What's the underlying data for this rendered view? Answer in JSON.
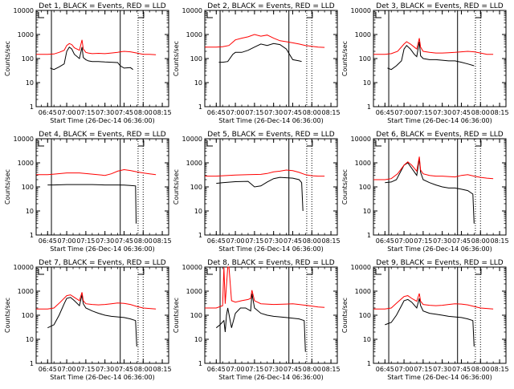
{
  "colors": {
    "events": "#000000",
    "lld": "#ff0000",
    "frame": "#000000",
    "background": "#ffffff"
  },
  "ylabel": "Counts/sec",
  "xlabel": "Start Time (26-Dec-14 06:36:00)",
  "ytick_labels": [
    "1",
    "10",
    "100",
    "1000",
    "10000"
  ],
  "xtick_labels": [
    "06:45",
    "07:00",
    "07:15",
    "07:30",
    "07:45",
    "08:00",
    "08:15"
  ],
  "chart_data": [
    {
      "type": "line",
      "title": "Det 1, BLACK = Events, RED = LLD",
      "yscale": "log",
      "ylim": [
        1,
        10000
      ],
      "xlim": [
        "06:36",
        "08:20"
      ],
      "solid_markers": [
        "06:48",
        "07:42"
      ],
      "dotted_markers": [
        "07:56",
        "08:00"
      ],
      "series": [
        {
          "name": "BLACK = Events",
          "x": [
            "06:47",
            "06:50",
            "06:54",
            "06:58",
            "07:00",
            "07:02",
            "07:04",
            "07:06",
            "07:10",
            "07:12",
            "07:13",
            "07:15",
            "07:17",
            "07:20",
            "07:25",
            "07:30",
            "07:35",
            "07:40",
            "07:42",
            "07:45",
            "07:50",
            "07:52"
          ],
          "y": [
            40,
            35,
            45,
            60,
            200,
            300,
            250,
            150,
            100,
            300,
            110,
            90,
            80,
            75,
            75,
            72,
            70,
            68,
            50,
            40,
            42,
            35
          ]
        },
        {
          "name": "RED = LLD",
          "x": [
            "06:36",
            "06:45",
            "06:50",
            "06:54",
            "06:58",
            "07:00",
            "07:02",
            "07:04",
            "07:06",
            "07:10",
            "07:12",
            "07:13",
            "07:15",
            "07:17",
            "07:20",
            "07:25",
            "07:30",
            "07:35",
            "07:40",
            "07:42",
            "07:45",
            "07:50",
            "07:55",
            "08:00",
            "08:05",
            "08:10"
          ],
          "y": [
            150,
            150,
            155,
            180,
            220,
            350,
            420,
            380,
            280,
            220,
            600,
            250,
            180,
            170,
            160,
            165,
            160,
            170,
            180,
            190,
            200,
            190,
            170,
            150,
            150,
            145
          ]
        }
      ]
    },
    {
      "type": "line",
      "title": "Det 2, BLACK = Events, RED = LLD",
      "yscale": "log",
      "ylim": [
        1,
        10000
      ],
      "xlim": [
        "06:36",
        "08:20"
      ],
      "solid_markers": [
        "06:48",
        "07:42"
      ],
      "dotted_markers": [
        "07:56",
        "08:00"
      ],
      "series": [
        {
          "name": "BLACK = Events",
          "x": [
            "06:47",
            "06:50",
            "06:54",
            "06:58",
            "07:00",
            "07:05",
            "07:10",
            "07:15",
            "07:20",
            "07:25",
            "07:30",
            "07:35",
            "07:40",
            "07:45",
            "07:50",
            "07:52"
          ],
          "y": [
            70,
            70,
            75,
            150,
            180,
            180,
            220,
            300,
            400,
            350,
            420,
            380,
            250,
            90,
            80,
            75
          ]
        },
        {
          "name": "RED = LLD",
          "x": [
            "06:36",
            "06:45",
            "06:50",
            "06:55",
            "07:00",
            "07:05",
            "07:10",
            "07:15",
            "07:20",
            "07:25",
            "07:30",
            "07:35",
            "07:40",
            "07:45",
            "07:50",
            "07:55",
            "08:00",
            "08:05",
            "08:10"
          ],
          "y": [
            300,
            300,
            310,
            350,
            600,
            700,
            800,
            1000,
            850,
            950,
            700,
            550,
            500,
            450,
            400,
            350,
            320,
            300,
            290
          ]
        }
      ]
    },
    {
      "type": "line",
      "title": "Det 3, BLACK = Events, RED = LLD",
      "yscale": "log",
      "ylim": [
        1,
        10000
      ],
      "xlim": [
        "06:36",
        "08:20"
      ],
      "solid_markers": [
        "06:48",
        "07:42"
      ],
      "dotted_markers": [
        "07:56",
        "08:00"
      ],
      "series": [
        {
          "name": "BLACK = Events",
          "x": [
            "06:47",
            "06:50",
            "06:54",
            "06:58",
            "07:00",
            "07:02",
            "07:05",
            "07:08",
            "07:10",
            "07:12",
            "07:13",
            "07:15",
            "07:20",
            "07:25",
            "07:30",
            "07:35",
            "07:40",
            "07:45",
            "07:50",
            "07:55"
          ],
          "y": [
            40,
            35,
            50,
            80,
            250,
            350,
            250,
            150,
            120,
            500,
            130,
            100,
            90,
            90,
            85,
            80,
            80,
            70,
            60,
            50
          ]
        },
        {
          "name": "RED = LLD",
          "x": [
            "06:36",
            "06:45",
            "06:50",
            "06:55",
            "07:00",
            "07:02",
            "07:05",
            "07:08",
            "07:10",
            "07:12",
            "07:13",
            "07:15",
            "07:20",
            "07:25",
            "07:30",
            "07:35",
            "07:40",
            "07:45",
            "07:50",
            "07:55",
            "08:00",
            "08:05",
            "08:10"
          ],
          "y": [
            150,
            150,
            160,
            200,
            400,
            500,
            400,
            300,
            250,
            700,
            300,
            200,
            180,
            170,
            170,
            175,
            180,
            190,
            200,
            190,
            170,
            150,
            150
          ]
        }
      ]
    },
    {
      "type": "line",
      "title": "Det 4, BLACK = Events, RED = LLD",
      "yscale": "log",
      "ylim": [
        1,
        10000
      ],
      "xlim": [
        "06:36",
        "08:20"
      ],
      "solid_markers": [
        "06:48",
        "07:42"
      ],
      "dotted_markers": [
        "07:56",
        "08:00"
      ],
      "series": [
        {
          "name": "BLACK = Events",
          "x": [
            "06:45",
            "06:50",
            "07:00",
            "07:10",
            "07:20",
            "07:30",
            "07:40",
            "07:45",
            "07:50",
            "07:54",
            "07:54.5"
          ],
          "y": [
            120,
            120,
            125,
            125,
            125,
            120,
            120,
            118,
            115,
            110,
            3
          ]
        },
        {
          "name": "RED = LLD",
          "x": [
            "06:36",
            "06:45",
            "06:50",
            "07:00",
            "07:10",
            "07:20",
            "07:30",
            "07:35",
            "07:40",
            "07:45",
            "07:50",
            "07:55",
            "08:00",
            "08:05",
            "08:10"
          ],
          "y": [
            320,
            320,
            340,
            380,
            380,
            340,
            300,
            350,
            450,
            520,
            480,
            420,
            380,
            350,
            320
          ]
        }
      ]
    },
    {
      "type": "line",
      "title": "Det 5, BLACK = Events, RED = LLD",
      "yscale": "log",
      "ylim": [
        1,
        10000
      ],
      "xlim": [
        "06:36",
        "08:20"
      ],
      "solid_markers": [
        "06:48",
        "07:42"
      ],
      "dotted_markers": [
        "07:56",
        "08:00"
      ],
      "series": [
        {
          "name": "BLACK = Events",
          "x": [
            "06:45",
            "06:50",
            "07:00",
            "07:10",
            "07:15",
            "07:20",
            "07:25",
            "07:30",
            "07:35",
            "07:40",
            "07:45",
            "07:50",
            "07:52",
            "07:53"
          ],
          "y": [
            140,
            150,
            165,
            170,
            100,
            110,
            160,
            220,
            250,
            240,
            230,
            200,
            150,
            10
          ]
        },
        {
          "name": "RED = LLD",
          "x": [
            "06:36",
            "06:45",
            "06:50",
            "07:00",
            "07:10",
            "07:20",
            "07:25",
            "07:30",
            "07:35",
            "07:40",
            "07:45",
            "07:50",
            "07:55",
            "08:00",
            "08:05",
            "08:10"
          ],
          "y": [
            280,
            280,
            290,
            310,
            320,
            330,
            360,
            420,
            450,
            500,
            470,
            400,
            320,
            290,
            280,
            280
          ]
        }
      ]
    },
    {
      "type": "line",
      "title": "Det 6, BLACK = Events, RED = LLD",
      "yscale": "log",
      "ylim": [
        1,
        10000
      ],
      "xlim": [
        "06:36",
        "08:20"
      ],
      "solid_markers": [
        "06:48",
        "07:42"
      ],
      "dotted_markers": [
        "07:56",
        "08:00"
      ],
      "series": [
        {
          "name": "BLACK = Events",
          "x": [
            "06:45",
            "06:50",
            "06:54",
            "06:58",
            "07:00",
            "07:03",
            "07:06",
            "07:10",
            "07:12",
            "07:13",
            "07:15",
            "07:20",
            "07:25",
            "07:30",
            "07:35",
            "07:40",
            "07:45",
            "07:50",
            "07:54",
            "07:55"
          ],
          "y": [
            150,
            160,
            200,
            500,
            800,
            1000,
            600,
            300,
            1500,
            400,
            200,
            150,
            120,
            100,
            90,
            90,
            80,
            70,
            50,
            3
          ]
        },
        {
          "name": "RED = LLD",
          "x": [
            "06:36",
            "06:45",
            "06:50",
            "06:55",
            "07:00",
            "07:03",
            "07:06",
            "07:10",
            "07:12",
            "07:13",
            "07:15",
            "07:20",
            "07:25",
            "07:30",
            "07:35",
            "07:40",
            "07:45",
            "07:50",
            "07:55",
            "08:00",
            "08:05",
            "08:10"
          ],
          "y": [
            200,
            200,
            220,
            350,
            800,
            1100,
            800,
            450,
            1800,
            500,
            350,
            300,
            280,
            280,
            270,
            260,
            300,
            320,
            280,
            250,
            230,
            220
          ]
        }
      ]
    },
    {
      "type": "line",
      "title": "Det 7, BLACK = Events, RED = LLD",
      "yscale": "log",
      "ylim": [
        1,
        10000
      ],
      "xlim": [
        "06:36",
        "08:20"
      ],
      "solid_markers": [
        "06:48",
        "07:42"
      ],
      "dotted_markers": [
        "07:56",
        "08:00"
      ],
      "series": [
        {
          "name": "BLACK = Events",
          "x": [
            "06:45",
            "06:50",
            "06:54",
            "06:58",
            "07:00",
            "07:03",
            "07:06",
            "07:10",
            "07:12",
            "07:13",
            "07:15",
            "07:20",
            "07:25",
            "07:30",
            "07:35",
            "07:40",
            "07:45",
            "07:50",
            "07:54",
            "07:55"
          ],
          "y": [
            30,
            40,
            100,
            300,
            500,
            550,
            400,
            250,
            700,
            300,
            200,
            150,
            120,
            100,
            90,
            85,
            80,
            70,
            60,
            5
          ]
        },
        {
          "name": "RED = LLD",
          "x": [
            "06:36",
            "06:45",
            "06:50",
            "06:55",
            "07:00",
            "07:03",
            "07:06",
            "07:10",
            "07:12",
            "07:13",
            "07:15",
            "07:20",
            "07:25",
            "07:30",
            "07:35",
            "07:40",
            "07:45",
            "07:50",
            "07:55",
            "08:00",
            "08:05",
            "08:10"
          ],
          "y": [
            180,
            180,
            200,
            350,
            650,
            700,
            550,
            400,
            900,
            400,
            300,
            280,
            270,
            280,
            300,
            320,
            310,
            280,
            230,
            200,
            190,
            180
          ]
        }
      ]
    },
    {
      "type": "line",
      "title": "Det 8, BLACK = Events, RED = LLD",
      "yscale": "log",
      "ylim": [
        1,
        10000
      ],
      "xlim": [
        "06:36",
        "08:20"
      ],
      "solid_markers": [
        "06:48",
        "07:42"
      ],
      "dotted_markers": [
        "07:56",
        "08:00"
      ],
      "series": [
        {
          "name": "BLACK = Events",
          "x": [
            "06:45",
            "06:48",
            "06:51",
            "06:52",
            "06:53",
            "06:54",
            "06:57",
            "07:00",
            "07:04",
            "07:08",
            "07:12",
            "07:13",
            "07:15",
            "07:20",
            "07:25",
            "07:30",
            "07:35",
            "07:40",
            "07:45",
            "07:50",
            "07:54",
            "07:55"
          ],
          "y": [
            30,
            40,
            60,
            20,
            100,
            200,
            30,
            120,
            200,
            200,
            150,
            800,
            200,
            120,
            100,
            90,
            85,
            80,
            75,
            70,
            60,
            3
          ]
        },
        {
          "name": "RED = LLD",
          "x": [
            "06:36",
            "06:45",
            "06:50",
            "06:51",
            "06:52",
            "06:54",
            "06:55",
            "06:57",
            "07:00",
            "07:05",
            "07:10",
            "07:12",
            "07:13",
            "07:15",
            "07:20",
            "07:30",
            "07:40",
            "07:45",
            "07:50",
            "07:55",
            "08:00",
            "08:05",
            "08:10"
          ],
          "y": [
            200,
            200,
            250,
            10000,
            300,
            10000,
            10000,
            400,
            350,
            400,
            450,
            500,
            1100,
            400,
            300,
            280,
            290,
            300,
            280,
            260,
            240,
            220,
            210
          ]
        }
      ]
    },
    {
      "type": "line",
      "title": "Det 9, BLACK = Events, RED = LLD",
      "yscale": "log",
      "ylim": [
        1,
        10000
      ],
      "xlim": [
        "06:36",
        "08:20"
      ],
      "solid_markers": [
        "06:48",
        "07:42"
      ],
      "dotted_markers": [
        "07:56",
        "08:00"
      ],
      "series": [
        {
          "name": "BLACK = Events",
          "x": [
            "06:45",
            "06:50",
            "06:54",
            "06:58",
            "07:00",
            "07:03",
            "07:06",
            "07:10",
            "07:12",
            "07:13",
            "07:15",
            "07:20",
            "07:25",
            "07:30",
            "07:35",
            "07:40",
            "07:45",
            "07:50",
            "07:54",
            "07:55"
          ],
          "y": [
            40,
            50,
            100,
            250,
            400,
            450,
            350,
            200,
            500,
            250,
            150,
            120,
            110,
            100,
            90,
            85,
            80,
            70,
            60,
            5
          ]
        },
        {
          "name": "RED = LLD",
          "x": [
            "06:36",
            "06:45",
            "06:50",
            "06:55",
            "07:00",
            "07:03",
            "07:06",
            "07:10",
            "07:12",
            "07:13",
            "07:15",
            "07:20",
            "07:25",
            "07:30",
            "07:35",
            "07:40",
            "07:45",
            "07:50",
            "07:55",
            "08:00",
            "08:05",
            "08:10"
          ],
          "y": [
            180,
            180,
            200,
            350,
            600,
            650,
            500,
            380,
            800,
            380,
            280,
            260,
            250,
            260,
            280,
            300,
            290,
            270,
            230,
            200,
            190,
            180
          ]
        }
      ]
    }
  ]
}
